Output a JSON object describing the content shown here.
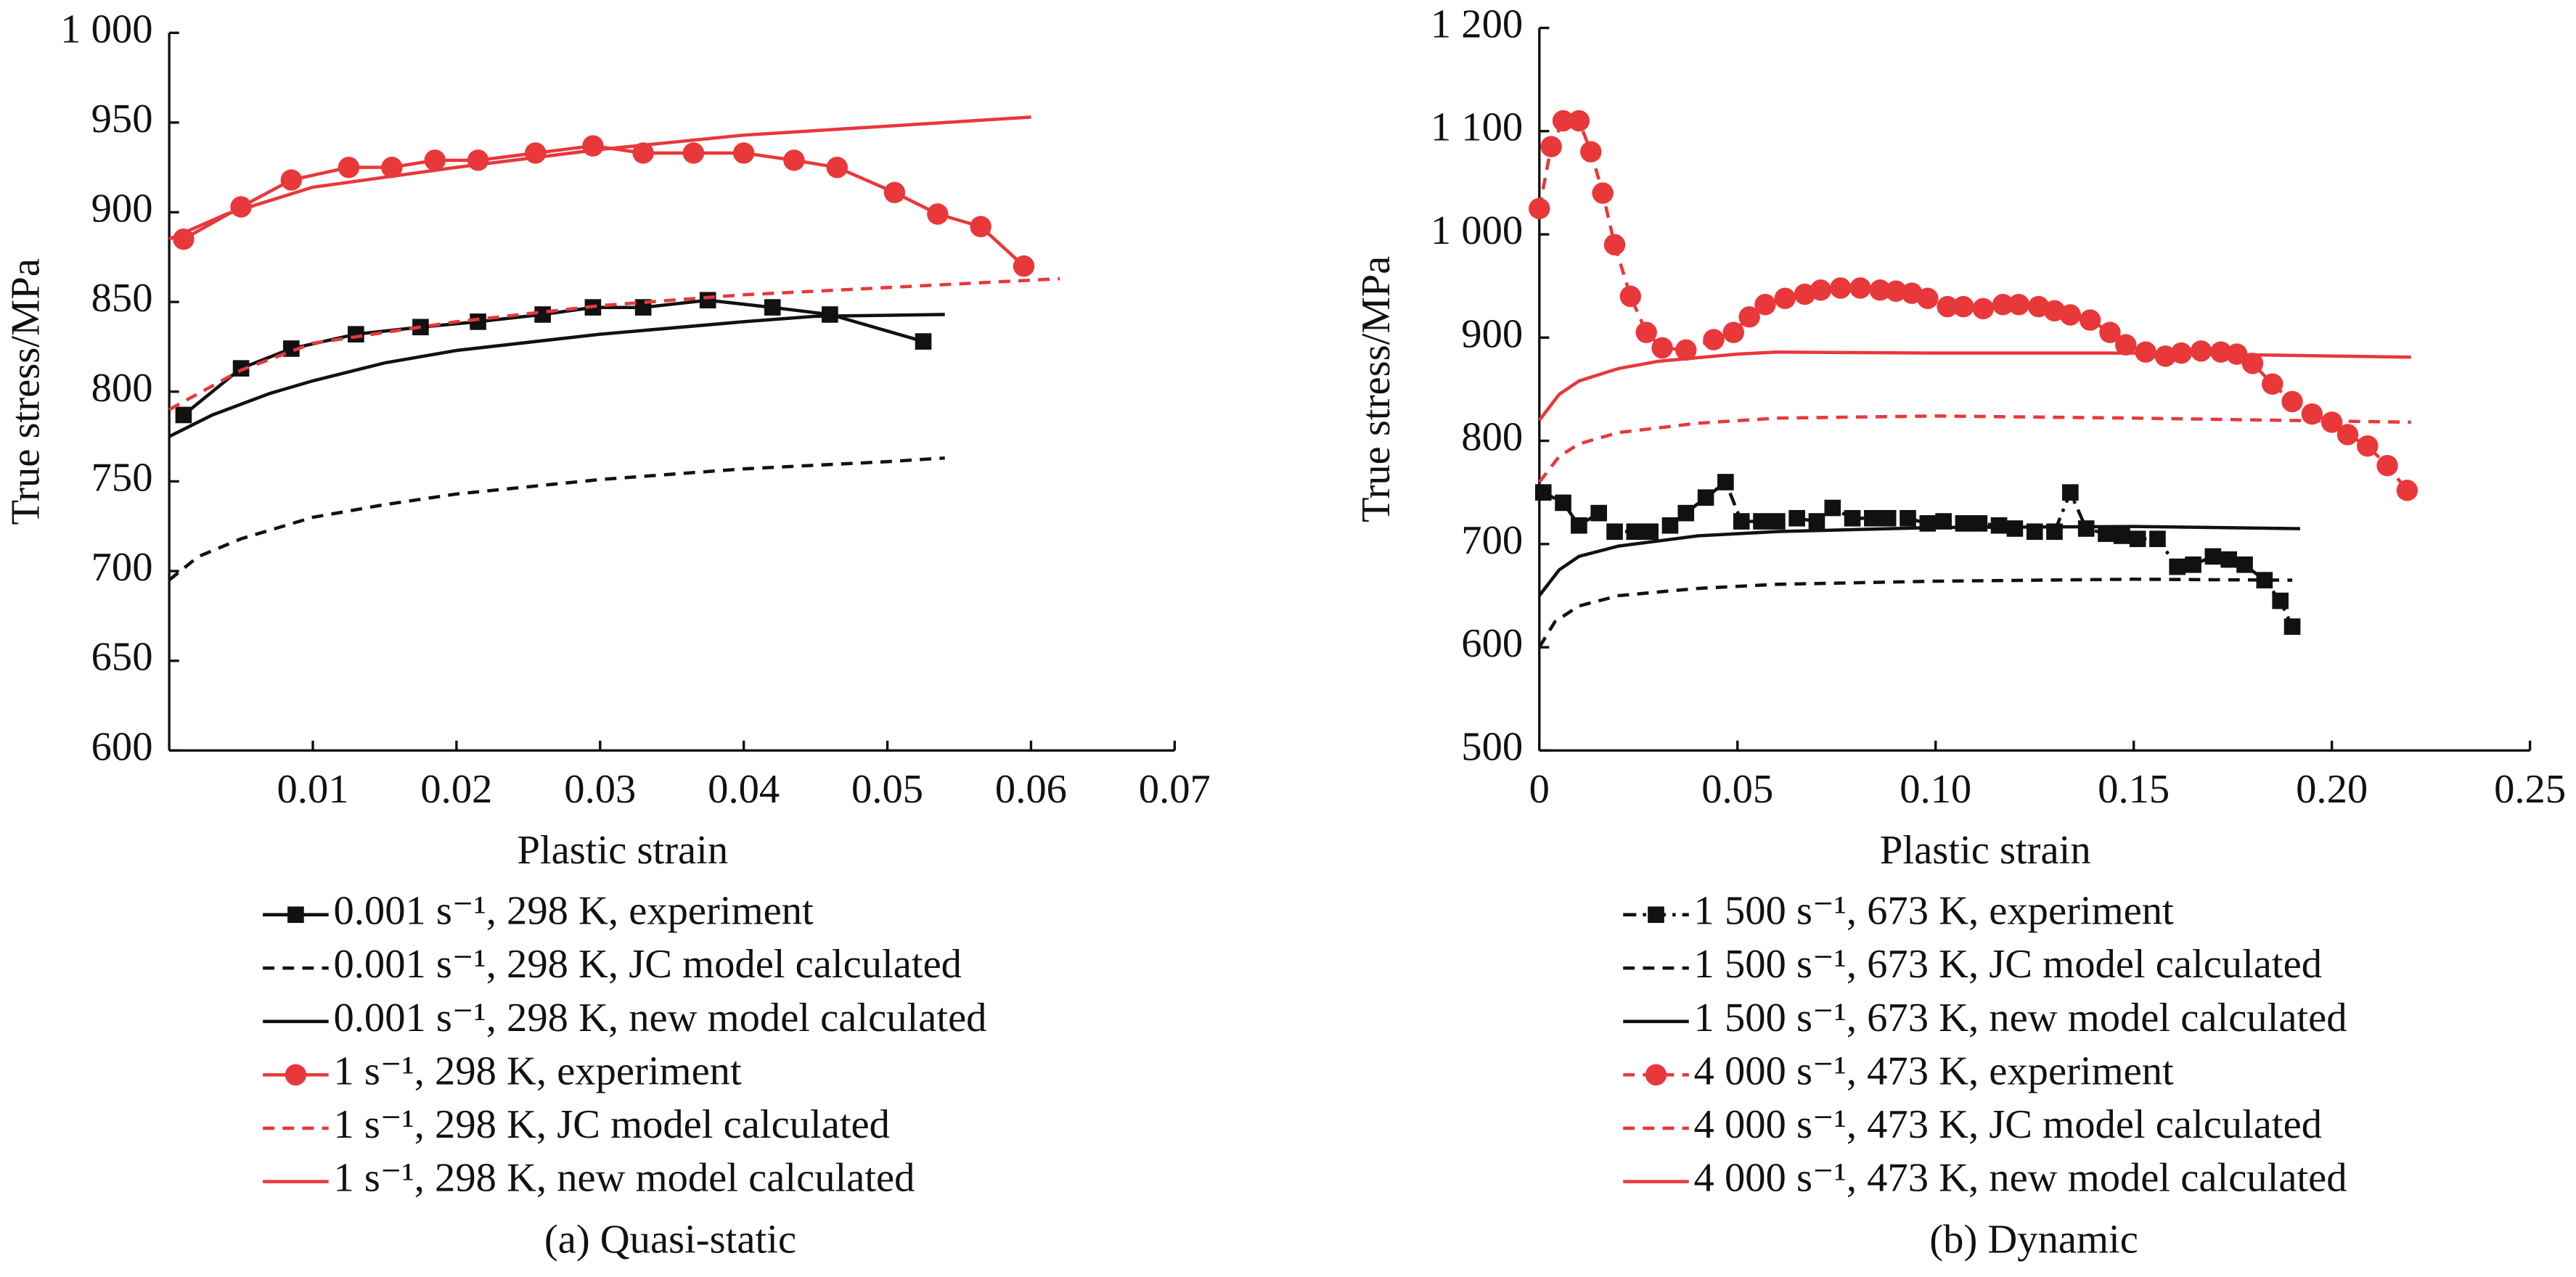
{
  "chart_data": [
    {
      "type": "line",
      "caption": "(a) Quasi-static",
      "xlabel": "Plastic strain",
      "ylabel": "True stress/MPa",
      "xlim": [
        0,
        0.07
      ],
      "xticks": [
        0.01,
        0.02,
        0.03,
        0.04,
        0.05,
        0.06,
        0.07
      ],
      "ylim": [
        600,
        1000
      ],
      "yticks": [
        600,
        650,
        700,
        750,
        800,
        850,
        900,
        950,
        {
          "value": 1000,
          "label": "1 000"
        }
      ],
      "series": [
        {
          "name": "0.001 s⁻¹, 298 K, experiment",
          "color": "#111111",
          "line_style": "solid",
          "marker": "square",
          "x": [
            0.001,
            0.005,
            0.0085,
            0.013,
            0.0175,
            0.0215,
            0.026,
            0.0295,
            0.033,
            0.0375,
            0.042,
            0.046,
            0.0525
          ],
          "values": [
            787,
            813,
            824,
            832,
            836,
            839,
            843,
            847,
            847,
            851,
            847,
            843,
            828
          ]
        },
        {
          "name": "0.001 s⁻¹, 298 K, JC model calculated",
          "color": "#111111",
          "line_style": "dashed",
          "x": [
            0,
            0.002,
            0.005,
            0.01,
            0.015,
            0.02,
            0.03,
            0.04,
            0.05,
            0.054
          ],
          "values": [
            695,
            708,
            718,
            730,
            737,
            743,
            751,
            757,
            761,
            763
          ]
        },
        {
          "name": "0.001 s⁻¹, 298 K, new model calculated",
          "color": "#111111",
          "line_style": "solid",
          "x": [
            0,
            0.003,
            0.007,
            0.01,
            0.015,
            0.02,
            0.03,
            0.04,
            0.045,
            0.054
          ],
          "values": [
            775,
            787,
            799,
            806,
            816,
            823,
            832,
            839,
            842,
            843
          ]
        },
        {
          "name": "1 s⁻¹, 298 K, experiment",
          "color": "#e8383a",
          "line_style": "solid",
          "marker": "circle",
          "x": [
            0.001,
            0.005,
            0.0085,
            0.0125,
            0.0155,
            0.0185,
            0.0215,
            0.0255,
            0.0295,
            0.033,
            0.0365,
            0.04,
            0.0435,
            0.0465,
            0.0505,
            0.0535,
            0.0565,
            0.0595
          ],
          "values": [
            885,
            903,
            918,
            925,
            925,
            929,
            929,
            933,
            937,
            933,
            933,
            933,
            929,
            925,
            911,
            899,
            892,
            870
          ]
        },
        {
          "name": "1 s⁻¹, 298 K, JC model calculated",
          "color": "#e8383a",
          "line_style": "dashed",
          "x": [
            0,
            0.005,
            0.01,
            0.02,
            0.03,
            0.04,
            0.05,
            0.062
          ],
          "values": [
            790,
            812,
            827,
            839,
            848,
            854,
            858,
            863
          ]
        },
        {
          "name": "1 s⁻¹, 298 K, new model calculated",
          "color": "#e8383a",
          "line_style": "solid",
          "x": [
            0,
            0.004,
            0.01,
            0.02,
            0.03,
            0.04,
            0.05,
            0.06
          ],
          "values": [
            885,
            899,
            914,
            925,
            935,
            943,
            948,
            953
          ]
        }
      ]
    },
    {
      "type": "line",
      "caption": "(b) Dynamic",
      "xlabel": "Plastic strain",
      "ylabel": "True stress/MPa",
      "xlim": [
        0,
        0.25
      ],
      "xticks": [
        0,
        0.05,
        {
          "value": 0.1,
          "label": "0.10"
        },
        0.15,
        {
          "value": 0.2,
          "label": "0.20"
        },
        0.25
      ],
      "ylim": [
        500,
        1200
      ],
      "yticks": [
        500,
        600,
        700,
        800,
        900,
        {
          "value": 1000,
          "label": "1 000"
        },
        {
          "value": 1100,
          "label": "1 100"
        },
        {
          "value": 1200,
          "label": "1 200"
        }
      ],
      "series": [
        {
          "name": "1 500 s⁻¹, 673 K, experiment",
          "color": "#111111",
          "line_style": "dashdot",
          "marker": "square",
          "x": [
            0.001,
            0.006,
            0.01,
            0.015,
            0.019,
            0.024,
            0.028,
            0.033,
            0.037,
            0.042,
            0.047,
            0.051,
            0.056,
            0.06,
            0.065,
            0.07,
            0.074,
            0.079,
            0.084,
            0.088,
            0.093,
            0.098,
            0.102,
            0.107,
            0.111,
            0.116,
            0.12,
            0.125,
            0.13,
            0.134,
            0.138,
            0.143,
            0.147,
            0.151,
            0.156,
            0.161,
            0.165,
            0.17,
            0.174,
            0.178,
            0.183,
            0.187,
            0.19
          ],
          "values": [
            750,
            740,
            718,
            730,
            712,
            712,
            712,
            718,
            730,
            745,
            760,
            722,
            722,
            722,
            725,
            722,
            735,
            725,
            725,
            725,
            725,
            720,
            722,
            720,
            720,
            718,
            715,
            712,
            712,
            750,
            715,
            710,
            708,
            705,
            705,
            678,
            680,
            688,
            685,
            680,
            665,
            645,
            620
          ]
        },
        {
          "name": "1 500 s⁻¹, 673 K, JC model calculated",
          "color": "#111111",
          "line_style": "dashed",
          "x": [
            0,
            0.004,
            0.01,
            0.02,
            0.04,
            0.06,
            0.1,
            0.15,
            0.19
          ],
          "values": [
            600,
            625,
            640,
            650,
            657,
            661,
            664,
            666,
            665
          ]
        },
        {
          "name": "1 500 s⁻¹, 673 K, new model calculated",
          "color": "#111111",
          "line_style": "solid",
          "x": [
            0,
            0.005,
            0.01,
            0.02,
            0.04,
            0.06,
            0.1,
            0.15,
            0.192
          ],
          "values": [
            650,
            675,
            688,
            698,
            708,
            712,
            716,
            717,
            715
          ]
        },
        {
          "name": "4 000 s⁻¹, 473 K, experiment",
          "color": "#e8383a",
          "line_style": "dashed",
          "marker": "circle",
          "x": [
            0,
            0.003,
            0.006,
            0.01,
            0.013,
            0.016,
            0.019,
            0.023,
            0.027,
            0.031,
            0.037,
            0.044,
            0.049,
            0.053,
            0.057,
            0.062,
            0.067,
            0.071,
            0.076,
            0.081,
            0.086,
            0.09,
            0.094,
            0.098,
            0.103,
            0.107,
            0.112,
            0.117,
            0.121,
            0.126,
            0.13,
            0.134,
            0.139,
            0.144,
            0.148,
            0.153,
            0.158,
            0.162,
            0.167,
            0.172,
            0.176,
            0.18,
            0.185,
            0.19,
            0.195,
            0.2,
            0.204,
            0.209,
            0.214,
            0.219
          ],
          "values": [
            1025,
            1085,
            1110,
            1110,
            1080,
            1040,
            990,
            940,
            905,
            890,
            888,
            898,
            905,
            920,
            932,
            938,
            942,
            946,
            948,
            948,
            946,
            945,
            943,
            938,
            930,
            930,
            928,
            932,
            932,
            930,
            926,
            922,
            917,
            905,
            893,
            886,
            882,
            885,
            887,
            886,
            884,
            875,
            855,
            838,
            826,
            818,
            806,
            795,
            776,
            752
          ]
        },
        {
          "name": "4 000 s⁻¹, 473 K, JC model calculated",
          "color": "#e8383a",
          "line_style": "dashed",
          "x": [
            0,
            0.005,
            0.01,
            0.02,
            0.04,
            0.06,
            0.1,
            0.15,
            0.22
          ],
          "values": [
            760,
            785,
            797,
            808,
            817,
            822,
            824,
            822,
            818
          ]
        },
        {
          "name": "4 000 s⁻¹, 473 K, new model calculated",
          "color": "#e8383a",
          "line_style": "solid",
          "x": [
            0,
            0.005,
            0.01,
            0.02,
            0.03,
            0.05,
            0.06,
            0.1,
            0.15,
            0.22
          ],
          "values": [
            820,
            845,
            858,
            870,
            877,
            884,
            886,
            885,
            885,
            881
          ]
        }
      ]
    }
  ]
}
